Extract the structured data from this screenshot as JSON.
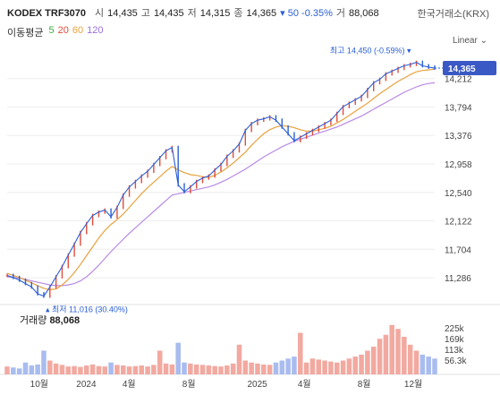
{
  "header": {
    "symbol": "KODEX TRF3070",
    "open_label": "시",
    "open": "14,435",
    "high_label": "고",
    "high": "14,435",
    "low_label": "저",
    "low": "14,315",
    "close_label": "종",
    "close": "14,365",
    "change": "▾ 50 -0.35%",
    "volume_label": "거",
    "volume": "88,068",
    "exchange": "한국거래소(KRX)"
  },
  "ma": {
    "label": "이동평균",
    "periods": [
      "5",
      "20",
      "60",
      "120"
    ],
    "colors": [
      "#3dab3d",
      "#e24b3a",
      "#e8a13d",
      "#9b6fe0"
    ]
  },
  "scale_button": "Linear",
  "volume_panel": {
    "label": "거래량",
    "value": "88,068"
  },
  "annotations": {
    "max_label": "최고 14,450 (-0.59%)",
    "min_label": "최저 11,016 (30.40%)"
  },
  "current_price_tag": "14,365",
  "colors": {
    "up": "#e24b3a",
    "down": "#2a5fd6",
    "ma20": "#e8a13d",
    "ma60": "#b98ae6"
  },
  "chart_data": {
    "type": "line",
    "y_ticks": [
      "14,212",
      "13,794",
      "13,376",
      "12,958",
      "12,540",
      "12,122",
      "11,704",
      "11,286"
    ],
    "ylim": [
      11050,
      14550
    ],
    "x_ticks": [
      "10월",
      "2024",
      "4월",
      "8월",
      "2025",
      "4월",
      "8월",
      "12월"
    ],
    "volume_ticks": [
      "225k",
      "169k",
      "113k",
      "56.3k"
    ],
    "series": [
      {
        "kind": "price",
        "values": [
          11320,
          11290,
          11250,
          11200,
          11150,
          11050,
          11016,
          11150,
          11300,
          11450,
          11620,
          11780,
          11950,
          12080,
          12200,
          12250,
          12280,
          12180,
          12320,
          12500,
          12620,
          12700,
          12780,
          12850,
          12950,
          13050,
          13150,
          13200,
          12650,
          12550,
          12620,
          12700,
          12750,
          12780,
          12870,
          12950,
          13070,
          13150,
          13250,
          13450,
          13550,
          13600,
          13620,
          13650,
          13600,
          13500,
          13400,
          13300,
          13350,
          13400,
          13450,
          13500,
          13550,
          13600,
          13700,
          13800,
          13850,
          13900,
          13950,
          14050,
          14150,
          14200,
          14280,
          14320,
          14360,
          14400,
          14420,
          14450,
          14400,
          14380,
          14365
        ]
      },
      {
        "name": "20",
        "values": [
          11350,
          11320,
          11290,
          11250,
          11210,
          11170,
          11130,
          11110,
          11120,
          11180,
          11260,
          11360,
          11480,
          11610,
          11740,
          11870,
          11980,
          12070,
          12140,
          12220,
          12320,
          12420,
          12520,
          12610,
          12690,
          12770,
          12850,
          12920,
          12870,
          12830,
          12800,
          12790,
          12770,
          12760,
          12790,
          12840,
          12900,
          12970,
          13050,
          13130,
          13230,
          13320,
          13400,
          13460,
          13500,
          13520,
          13510,
          13490,
          13460,
          13440,
          13440,
          13460,
          13480,
          13510,
          13560,
          13610,
          13670,
          13730,
          13790,
          13850,
          13920,
          13990,
          14050,
          14110,
          14170,
          14220,
          14270,
          14310,
          14330,
          14340,
          14350
        ]
      },
      {
        "name": "60",
        "values": [
          11300,
          11290,
          11280,
          11260,
          11240,
          11220,
          11200,
          11180,
          11170,
          11170,
          11180,
          11200,
          11240,
          11300,
          11380,
          11470,
          11570,
          11670,
          11760,
          11850,
          11940,
          12020,
          12100,
          12180,
          12260,
          12340,
          12420,
          12500,
          12520,
          12540,
          12560,
          12580,
          12600,
          12620,
          12650,
          12690,
          12730,
          12780,
          12830,
          12880,
          12940,
          13000,
          13060,
          13110,
          13160,
          13210,
          13250,
          13290,
          13320,
          13350,
          13380,
          13410,
          13440,
          13470,
          13500,
          13540,
          13580,
          13620,
          13660,
          13710,
          13760,
          13810,
          13860,
          13910,
          13960,
          14010,
          14050,
          14090,
          14120,
          14140,
          14150
        ]
      },
      {
        "kind": "volume",
        "values": [
          40,
          35,
          30,
          60,
          45,
          50,
          120,
          70,
          55,
          48,
          40,
          42,
          38,
          45,
          50,
          42,
          40,
          60,
          48,
          45,
          40,
          42,
          45,
          40,
          48,
          120,
          55,
          50,
          160,
          60,
          55,
          50,
          48,
          45,
          42,
          40,
          45,
          55,
          150,
          70,
          60,
          55,
          50,
          48,
          60,
          70,
          80,
          90,
          210,
          60,
          80,
          75,
          70,
          65,
          60,
          70,
          80,
          90,
          100,
          120,
          140,
          180,
          200,
          250,
          230,
          190,
          150,
          120,
          100,
          90,
          80
        ]
      }
    ]
  }
}
